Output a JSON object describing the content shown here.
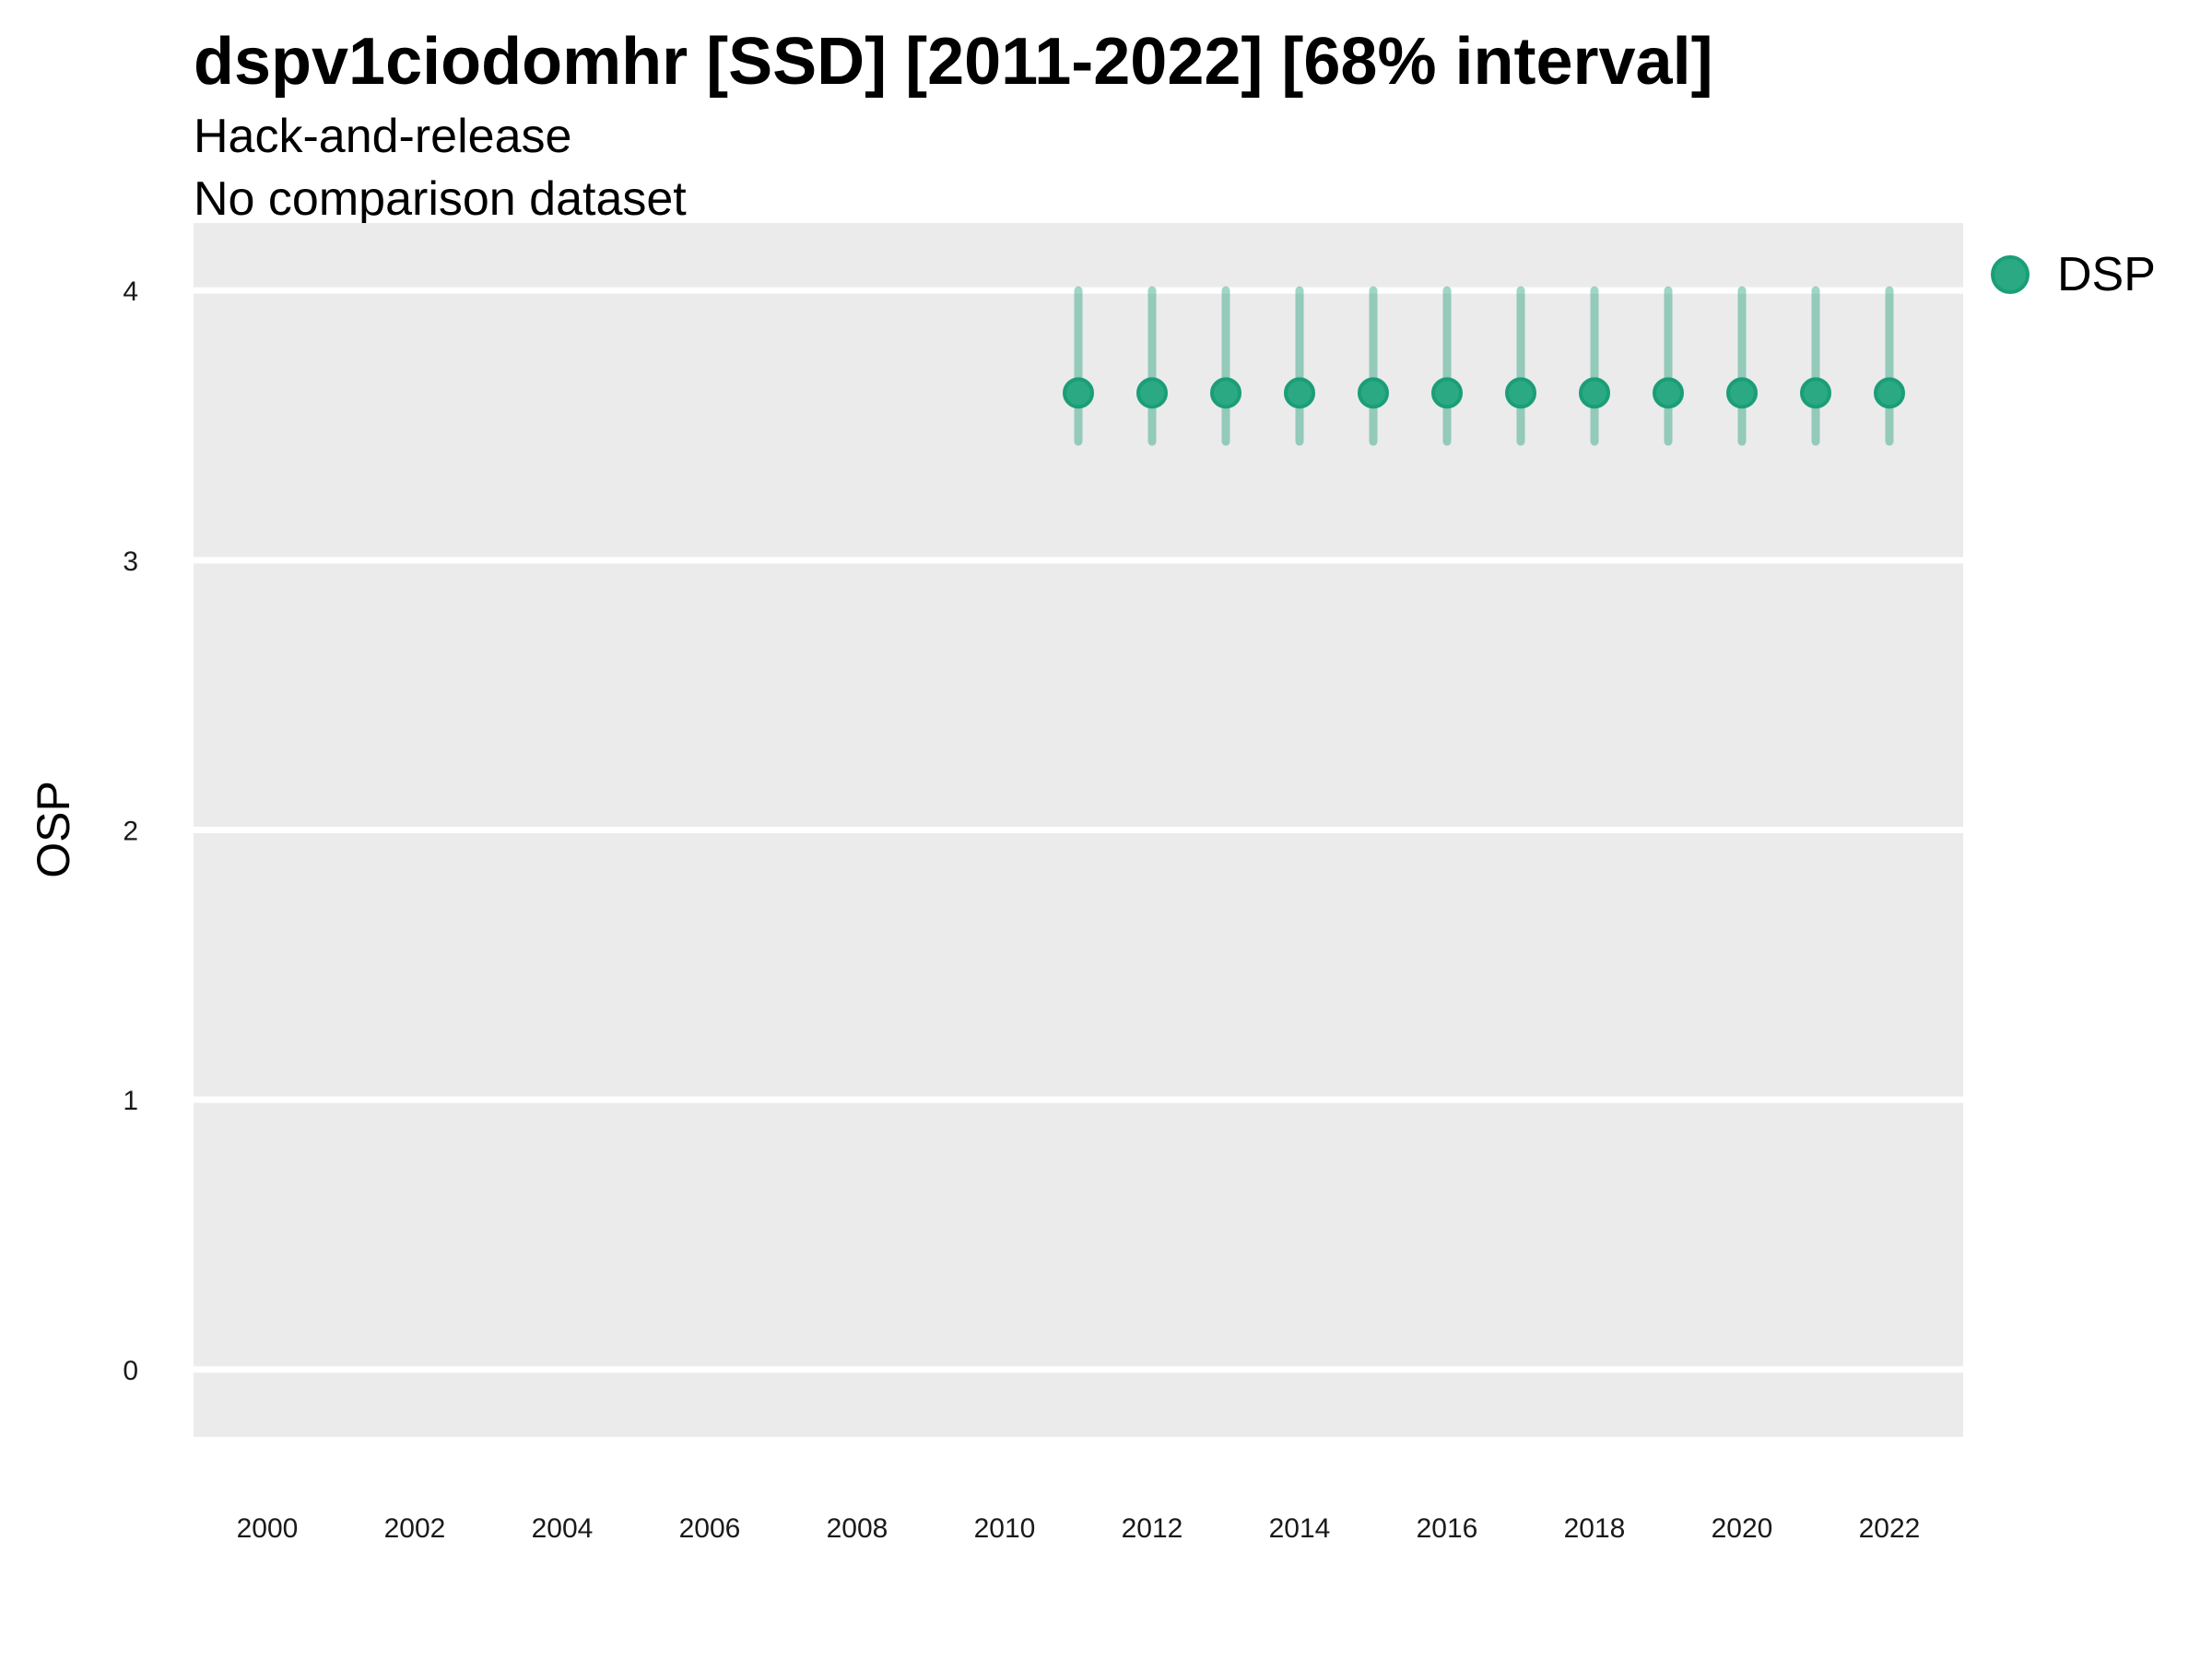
{
  "header": {
    "title": "dspv1ciodomhr [SSD] [2011-2022] [68% interval]",
    "subtitle_line1": "Hack-and-release",
    "subtitle_line2": "No comparison dataset"
  },
  "legend": {
    "position": "top-right",
    "items": [
      {
        "label": "DSP",
        "marker": "circle-icon",
        "color": "#2BA982",
        "border_color": "#1B9E77"
      }
    ]
  },
  "axes": {
    "y_title": "OSP",
    "x_title": ""
  },
  "colors": {
    "panel_background": "#EBEBEB",
    "gridline": "#FFFFFF",
    "tick_label": "#1A1A1A",
    "point_fill": "#2BA982",
    "point_stroke": "#1B9E77",
    "interval_color": "#1B9E77"
  },
  "chart_data": {
    "type": "pointrange-scatter",
    "title": "dspv1ciodomhr [SSD] [2011-2022] [68% interval]",
    "subtitle": [
      "Hack-and-release",
      "No comparison dataset"
    ],
    "xlabel": "",
    "ylabel": "OSP",
    "interval_level": "68% interval",
    "x_ticks": [
      2000,
      2002,
      2004,
      2006,
      2008,
      2010,
      2012,
      2014,
      2016,
      2018,
      2020,
      2022
    ],
    "y_ticks": [
      0,
      1,
      2,
      3,
      4
    ],
    "xlim": [
      1999,
      2023
    ],
    "ylim": [
      -0.25,
      4.25
    ],
    "grid": {
      "horizontal_major": true,
      "vertical_major": false,
      "minor": false
    },
    "legend_position": "top-right",
    "series": [
      {
        "name": "DSP",
        "point_fill": "#2BA982",
        "point_stroke": "#1B9E77",
        "interval_color": "#1B9E77",
        "interval_opacity": 0.42,
        "points": [
          {
            "x": 2011,
            "y": 3.62,
            "ymin": 3.44,
            "ymax": 4.0
          },
          {
            "x": 2012,
            "y": 3.62,
            "ymin": 3.44,
            "ymax": 4.0
          },
          {
            "x": 2013,
            "y": 3.62,
            "ymin": 3.44,
            "ymax": 4.0
          },
          {
            "x": 2014,
            "y": 3.62,
            "ymin": 3.44,
            "ymax": 4.0
          },
          {
            "x": 2015,
            "y": 3.62,
            "ymin": 3.44,
            "ymax": 4.0
          },
          {
            "x": 2016,
            "y": 3.62,
            "ymin": 3.44,
            "ymax": 4.0
          },
          {
            "x": 2017,
            "y": 3.62,
            "ymin": 3.44,
            "ymax": 4.0
          },
          {
            "x": 2018,
            "y": 3.62,
            "ymin": 3.44,
            "ymax": 4.0
          },
          {
            "x": 2019,
            "y": 3.62,
            "ymin": 3.44,
            "ymax": 4.0
          },
          {
            "x": 2020,
            "y": 3.62,
            "ymin": 3.44,
            "ymax": 4.0
          },
          {
            "x": 2021,
            "y": 3.62,
            "ymin": 3.44,
            "ymax": 4.0
          },
          {
            "x": 2022,
            "y": 3.62,
            "ymin": 3.44,
            "ymax": 4.0
          }
        ]
      }
    ]
  }
}
